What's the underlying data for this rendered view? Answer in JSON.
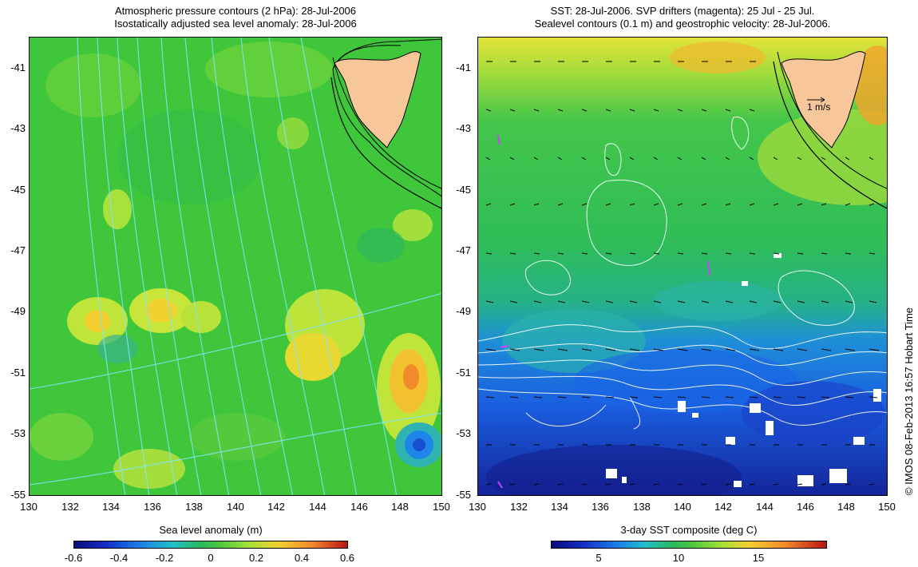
{
  "left_panel": {
    "title_line1": "Atmospheric pressure contours (2 hPa): 28-Jul-2006",
    "title_line2": "Isostatically adjusted sea level anomaly: 28-Jul-2006",
    "colorbar_label": "Sea level anomaly (m)",
    "colorbar_ticks": [
      "-0.6",
      "-0.4",
      "-0.2",
      "0",
      "0.2",
      "0.4",
      "0.6"
    ]
  },
  "right_panel": {
    "title_line1": "SST: 28-Jul-2006. SVP drifters (magenta): 25 Jul - 25 Jul.",
    "title_line2": "Sealevel contours (0.1 m) and geostrophic velocity: 28-Jul-2006.",
    "scale_label": "1 m/s",
    "colorbar_label": "3-day SST composite (deg C)",
    "colorbar_ticks": [
      "5",
      "10",
      "15"
    ]
  },
  "axes": {
    "lat_ticks": [
      "-41",
      "-43",
      "-45",
      "-47",
      "-49",
      "-51",
      "-53",
      "-55"
    ],
    "lon_ticks": [
      "130",
      "132",
      "134",
      "136",
      "138",
      "140",
      "142",
      "144",
      "146",
      "148",
      "150"
    ]
  },
  "credit": "© IMOS 08-Feb-2013 16:57 Hobart Time",
  "colors": {
    "land": "#f7c79a",
    "pressure_contour": "#7fe6ff",
    "sealevel_contour": "#ffffff",
    "drifter": "#d040ff"
  }
}
